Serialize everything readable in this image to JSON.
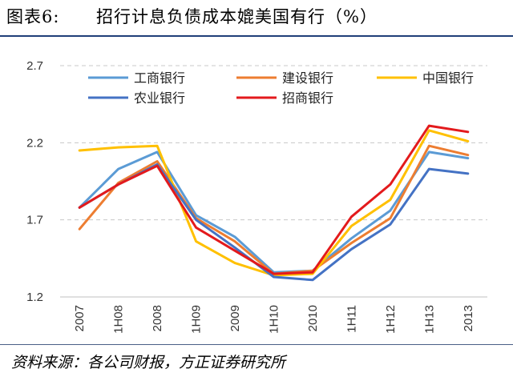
{
  "figure": {
    "number": "图表6:",
    "title": "招行计息负债成本媲美国有行（%）",
    "source": "资料来源：各公司财报，方正证券研究所"
  },
  "chart_data": {
    "type": "line",
    "categories": [
      "2007",
      "1H08",
      "2008",
      "1H09",
      "2009",
      "1H10",
      "2010",
      "1H11",
      "1H12",
      "1H13",
      "2013"
    ],
    "ylim": [
      1.2,
      2.7
    ],
    "yticks": [
      "1.2",
      "1.7",
      "2.2",
      "2.7"
    ],
    "grid": "horizontal-dashed",
    "legend_position": "top",
    "series": [
      {
        "name": "工商银行",
        "color": "#5b9bd5",
        "values": [
          1.78,
          2.03,
          2.14,
          1.73,
          1.59,
          1.36,
          1.37,
          1.58,
          1.76,
          2.14,
          2.1
        ]
      },
      {
        "name": "建设银行",
        "color": "#ed7d31",
        "values": [
          1.64,
          1.94,
          2.08,
          1.71,
          1.56,
          1.35,
          1.37,
          1.55,
          1.71,
          2.18,
          2.12
        ]
      },
      {
        "name": "中国银行",
        "color": "#ffc000",
        "values": [
          2.15,
          2.17,
          2.18,
          1.56,
          1.42,
          1.34,
          1.35,
          1.66,
          1.83,
          2.28,
          2.21
        ]
      },
      {
        "name": "农业银行",
        "color": "#4472c4",
        "values": [
          1.78,
          1.93,
          2.06,
          1.7,
          1.52,
          1.33,
          1.31,
          1.51,
          1.67,
          2.03,
          2.0
        ]
      },
      {
        "name": "招商银行",
        "color": "#e31a1c",
        "values": [
          1.78,
          1.93,
          2.05,
          1.65,
          1.5,
          1.35,
          1.36,
          1.72,
          1.93,
          2.31,
          2.27
        ]
      }
    ]
  }
}
